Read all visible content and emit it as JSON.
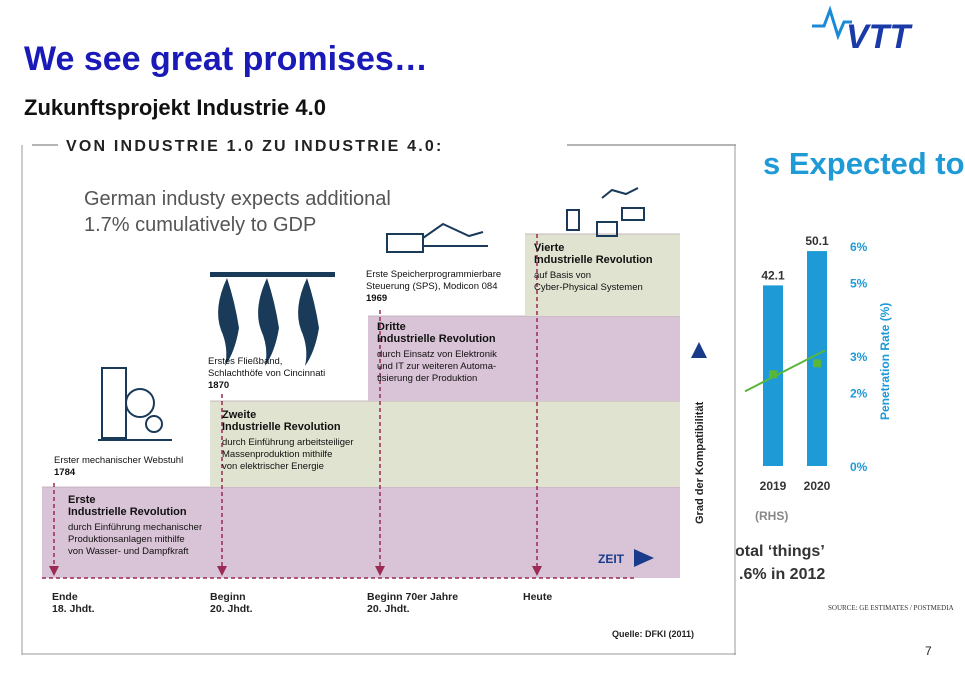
{
  "slide": {
    "title": "We see great promises…",
    "subtitle_cut": "Zukunftsprojekt Industrie 4.0",
    "page_number": "7",
    "callout_line1": "German industy expects additional",
    "callout_line2": "1.7% cumulatively to GDP"
  },
  "logo": {
    "icon": "vtt-logo-icon",
    "text": "VTT",
    "color": "#1a3aa8"
  },
  "background_chart": {
    "heading": "s Expected to",
    "bottom_line1": "otal ‘things’",
    "bottom_line2": ".6% in 2012",
    "source": "SOURCE: GE ESTIMATES / POSTMEDIA",
    "rhs_label": "(RHS)"
  },
  "chart_data": [
    {
      "type": "bar",
      "categories": [
        "2019",
        "2020"
      ],
      "values": [
        42.1,
        50.1
      ],
      "data_labels": [
        "42.1",
        "50.1"
      ],
      "line_series": {
        "values": [
          2.5,
          2.8
        ]
      },
      "ylabel_right": "Penetration Rate (%)",
      "right_ticks": [
        "6%",
        "5%",
        "3%",
        "2%",
        "0%"
      ],
      "right_tick_values": [
        6,
        5,
        3,
        2,
        0
      ],
      "right_ylim": [
        0,
        6
      ],
      "ylim": [
        0,
        60
      ],
      "colors": {
        "bar": "#1e9ad6",
        "line": "#5ab53d",
        "axis_text": "#1e9ad6"
      }
    },
    {
      "type": "table",
      "title": "VON INDUSTRIE 1.0 ZU INDUSTRIE 4.0:",
      "x_axis_label": "ZEIT",
      "y_axis_label": "Grad der Kompatibilität",
      "source": "Quelle: DFKI (2011)",
      "stages": [
        {
          "title": "Erste\nIndustrielle Revolution",
          "desc": "durch Einführung mechanischer\nProduktionsanlagen mithilfe\nvon Wasser- und Dampfkraft",
          "level": 1,
          "color": "#d9c3d6"
        },
        {
          "title": "Zweite\nIndustrielle Revolution",
          "desc": "durch Einführung arbeitsteiliger\nMassenproduktion mithilfe\nvon elektrischer Energie",
          "level": 2,
          "color": "#dfe3cf"
        },
        {
          "title": "Dritte\nIndustrielle Revolution",
          "desc": "durch Einsatz von Elektronik\nund IT zur weiteren Automa-\ntisierung der Produktion",
          "level": 3,
          "color": "#d9c3d6"
        },
        {
          "title": "Vierte\nIndustrielle Revolution",
          "desc": "auf Basis von\nCyber-Physical Systemen",
          "level": 4,
          "color": "#dfe3cf"
        }
      ],
      "events": [
        {
          "name": "Erster mechanischer Webstuhl",
          "year": "1784"
        },
        {
          "name": "Erstes Fließband,\nSchlachthöfe von Cincinnati",
          "year": "1870"
        },
        {
          "name": "Erste Speicherprogrammierbare\nSteuerung (SPS), Modicon 084",
          "year": "1969"
        }
      ],
      "timeline": [
        "Ende\n18. Jhdt.",
        "Beginn\n20. Jhdt.",
        "Beginn 70er Jahre\n20. Jhdt.",
        "Heute"
      ]
    }
  ]
}
